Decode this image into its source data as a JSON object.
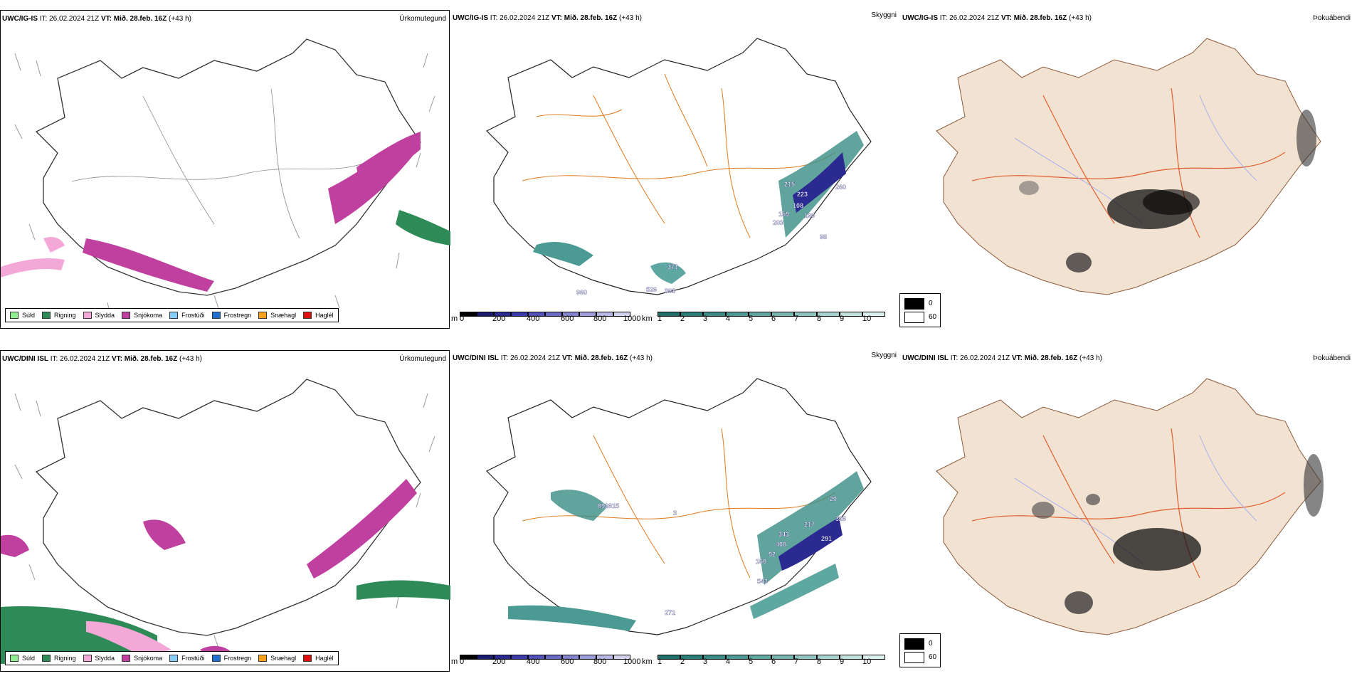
{
  "rows": [
    {
      "model": "UWC/IG-IS",
      "it_label": "IT:",
      "it_value": "26.02.2024 21Z",
      "vt_label": "VT:",
      "vt_value": "Mið. 28.feb. 16Z",
      "lead": "(+43 h)"
    },
    {
      "model": "UWC/DINI ISL",
      "it_label": "IT:",
      "it_value": "26.02.2024 21Z",
      "vt_label": "VT:",
      "vt_value": "Mið. 28.feb. 16Z",
      "lead": "(+43 h)"
    }
  ],
  "panel_titles": {
    "precip": "Úrkomutegund",
    "visibility": "Skyggni",
    "fog": "Þokuábendi"
  },
  "precip_legend": [
    {
      "label": "Súld",
      "color": "#90ee90"
    },
    {
      "label": "Rigning",
      "color": "#2e8b57"
    },
    {
      "label": "Slydda",
      "color": "#f4a8d8"
    },
    {
      "label": "Snjókoma",
      "color": "#c040a0"
    },
    {
      "label": "Frostúði",
      "color": "#87cefa"
    },
    {
      "label": "Frostregn",
      "color": "#1e6fcf"
    },
    {
      "label": "Snæhagl",
      "color": "#ff9f1a"
    },
    {
      "label": "Haglél",
      "color": "#e01010"
    }
  ],
  "ceiling_scale": {
    "unit": "m",
    "ticks": [
      "0",
      "200",
      "400",
      "600",
      "800",
      "1000"
    ],
    "colors": [
      "#000000",
      "#1a1a6e",
      "#2a2a90",
      "#3a3aa8",
      "#5252b8",
      "#6a6ac4",
      "#8484d0",
      "#9e9edc",
      "#b8b8e6",
      "#d2d2f0"
    ]
  },
  "visibility_scale": {
    "unit": "km",
    "ticks": [
      "1",
      "2",
      "3",
      "4",
      "5",
      "6",
      "7",
      "8",
      "9",
      "10"
    ],
    "colors": [
      "#1f6f6a",
      "#2b7d77",
      "#3a8c85",
      "#4b9a93",
      "#5fa8a1",
      "#75b6b0",
      "#8dc4bf",
      "#a6d3cf",
      "#c0e2df",
      "#dcf0ee"
    ]
  },
  "fog_legend": {
    "low": "0",
    "high": "60"
  },
  "ceiling_labels_top": [
    "215",
    "223",
    "108",
    "159",
    "190",
    "203",
    "98",
    "260",
    "371",
    "526",
    "363",
    "960"
  ],
  "ceiling_labels_bottom": [
    "892615",
    "343",
    "408",
    "92",
    "160",
    "543",
    "217",
    "326",
    "291",
    "20",
    "271",
    "3"
  ]
}
